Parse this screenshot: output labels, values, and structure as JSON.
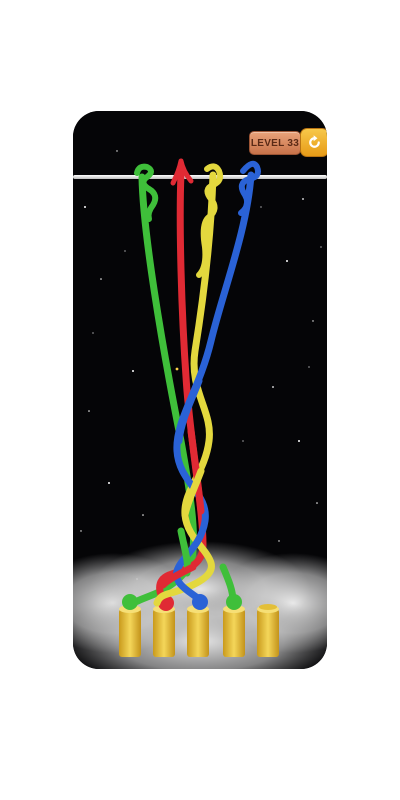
{
  "game": {
    "level_label": "LEVEL 33",
    "icons": {
      "restart": "restart-icon"
    },
    "colors": {
      "background": "#050507",
      "bar": "#f2f2f2",
      "rope_green": "#3fbf3a",
      "rope_red": "#e02a34",
      "rope_yellow": "#e3d83e",
      "rope_blue": "#2a62d6",
      "peg": "#e8c23c",
      "badge": "#d8875e",
      "restart_button": "#f2b234"
    },
    "ropes": [
      {
        "name": "green",
        "color": "#3fbf3a"
      },
      {
        "name": "red",
        "color": "#e02a34"
      },
      {
        "name": "yellow",
        "color": "#e3d83e"
      },
      {
        "name": "blue",
        "color": "#2a62d6"
      }
    ],
    "pegs": [
      {
        "name": "peg-1",
        "occupied": true
      },
      {
        "name": "peg-2",
        "occupied": true
      },
      {
        "name": "peg-3",
        "occupied": true
      },
      {
        "name": "peg-4",
        "occupied": true
      },
      {
        "name": "peg-5",
        "occupied": false
      }
    ]
  }
}
